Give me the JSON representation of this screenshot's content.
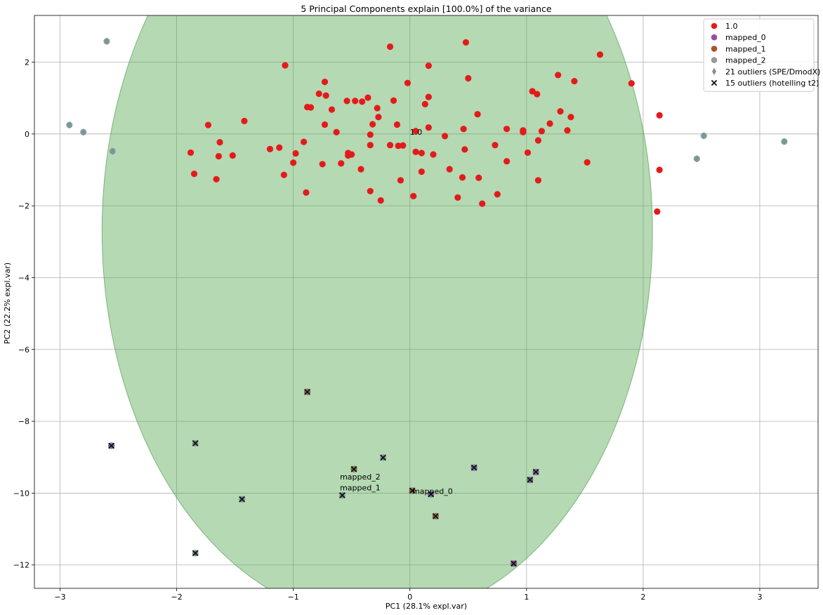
{
  "chart_data": {
    "type": "scatter",
    "title": "5 Principal Components explain [100.0%] of the variance",
    "xlabel": "PC1 (28.1% expl.var)",
    "ylabel": "PC2 (22.2% expl.var)",
    "xlim": [
      -3.22,
      3.5
    ],
    "ylim": [
      -12.65,
      3.3
    ],
    "xticks": [
      -3,
      -2,
      -1,
      0,
      1,
      2,
      3
    ],
    "yticks": [
      2,
      0,
      -2,
      -4,
      -6,
      -8,
      -10,
      -12
    ],
    "grid": true,
    "legend_position": "top-right",
    "ellipse": {
      "cx": -0.28,
      "cy": -2.7,
      "rx": 2.36,
      "ry": 10.85,
      "angle_deg": 0,
      "color": "#5aaa55"
    },
    "colors": {
      "1.0": "#e41a1c",
      "mapped_0": "#984ea3",
      "mapped_1": "#a65628",
      "mapped_2": "#999999",
      "outlier_marker": "#111111"
    },
    "series": [
      {
        "name": "1.0",
        "marker": "circle",
        "color": "#e41a1c",
        "points": [
          [
            -0.17,
            2.43
          ],
          [
            0.48,
            2.55
          ],
          [
            0.16,
            1.9
          ],
          [
            -1.07,
            1.91
          ],
          [
            1.63,
            2.21
          ],
          [
            1.9,
            1.41
          ],
          [
            1.41,
            1.47
          ],
          [
            1.27,
            1.64
          ],
          [
            1.05,
            1.19
          ],
          [
            1.09,
            1.11
          ],
          [
            0.5,
            1.55
          ],
          [
            -0.73,
            1.45
          ],
          [
            -0.78,
            1.12
          ],
          [
            -0.72,
            1.07
          ],
          [
            -0.54,
            0.92
          ],
          [
            -0.47,
            0.92
          ],
          [
            -0.41,
            0.9
          ],
          [
            -0.36,
            1.01
          ],
          [
            -0.14,
            0.93
          ],
          [
            -0.02,
            1.42
          ],
          [
            0.16,
            1.03
          ],
          [
            0.13,
            0.83
          ],
          [
            -0.88,
            0.75
          ],
          [
            -0.85,
            0.74
          ],
          [
            -0.67,
            0.68
          ],
          [
            -0.28,
            0.72
          ],
          [
            -0.27,
            0.47
          ],
          [
            1.29,
            0.63
          ],
          [
            1.38,
            0.47
          ],
          [
            0.58,
            0.55
          ],
          [
            -1.73,
            0.25
          ],
          [
            -1.42,
            0.36
          ],
          [
            -0.73,
            0.26
          ],
          [
            -0.63,
            0.05
          ],
          [
            -0.32,
            0.27
          ],
          [
            -0.11,
            0.26
          ],
          [
            0.05,
            0.08
          ],
          [
            0.16,
            0.18
          ],
          [
            0.3,
            -0.06
          ],
          [
            0.46,
            0.14
          ],
          [
            0.83,
            0.14
          ],
          [
            0.97,
            0.1
          ],
          [
            0.97,
            0.05
          ],
          [
            1.13,
            0.08
          ],
          [
            1.2,
            0.29
          ],
          [
            1.35,
            0.1
          ],
          [
            2.14,
            0.52
          ],
          [
            -1.88,
            -0.52
          ],
          [
            -1.63,
            -0.23
          ],
          [
            -1.64,
            -0.62
          ],
          [
            -1.52,
            -0.6
          ],
          [
            -1.2,
            -0.42
          ],
          [
            -1.12,
            -0.38
          ],
          [
            -0.98,
            -0.54
          ],
          [
            -0.91,
            -0.22
          ],
          [
            -0.53,
            -0.53
          ],
          [
            -0.53,
            -0.6
          ],
          [
            -0.5,
            -0.57
          ],
          [
            -0.34,
            -0.02
          ],
          [
            -0.34,
            -0.31
          ],
          [
            -0.17,
            -0.31
          ],
          [
            -0.1,
            -0.33
          ],
          [
            -0.06,
            -0.32
          ],
          [
            0.05,
            -0.5
          ],
          [
            0.1,
            -0.53
          ],
          [
            0.2,
            -0.57
          ],
          [
            0.47,
            -0.43
          ],
          [
            0.73,
            -0.31
          ],
          [
            1.01,
            -0.52
          ],
          [
            1.1,
            -0.18
          ],
          [
            -1.85,
            -1.11
          ],
          [
            -1.66,
            -1.26
          ],
          [
            -1.08,
            -1.14
          ],
          [
            -1.0,
            -0.8
          ],
          [
            -0.75,
            -0.84
          ],
          [
            -0.59,
            -0.82
          ],
          [
            -0.42,
            -0.98
          ],
          [
            -0.08,
            -1.29
          ],
          [
            0.1,
            -1.05
          ],
          [
            0.34,
            -0.98
          ],
          [
            0.45,
            -1.21
          ],
          [
            0.59,
            -1.22
          ],
          [
            0.83,
            -0.76
          ],
          [
            1.1,
            -1.29
          ],
          [
            1.52,
            -0.79
          ],
          [
            2.14,
            -1.0
          ],
          [
            -0.89,
            -1.63
          ],
          [
            -0.34,
            -1.59
          ],
          [
            -0.25,
            -1.85
          ],
          [
            0.03,
            -1.73
          ],
          [
            0.41,
            -1.77
          ],
          [
            0.62,
            -1.94
          ],
          [
            0.75,
            -1.68
          ],
          [
            2.12,
            -2.16
          ]
        ]
      },
      {
        "name": "mapped_0",
        "marker": "circle",
        "color": "#984ea3",
        "points": [
          [
            -2.56,
            -8.68
          ],
          [
            0.18,
            -10.03
          ],
          [
            0.55,
            -9.29
          ],
          [
            1.03,
            -9.63
          ],
          [
            1.08,
            -9.41
          ],
          [
            0.89,
            -11.96
          ]
        ]
      },
      {
        "name": "mapped_1",
        "marker": "circle",
        "color": "#a65628",
        "points": [
          [
            -0.88,
            -7.18
          ],
          [
            -0.48,
            -9.33
          ],
          [
            0.02,
            -9.93
          ],
          [
            0.22,
            -10.64
          ]
        ]
      },
      {
        "name": "mapped_2",
        "marker": "circle",
        "color": "#999999",
        "points": [
          [
            -2.6,
            2.58
          ],
          [
            -2.92,
            0.25
          ],
          [
            -2.8,
            0.05
          ],
          [
            -2.55,
            -0.48
          ],
          [
            2.52,
            -0.05
          ],
          [
            2.46,
            -0.69
          ],
          [
            3.21,
            -0.21
          ],
          [
            -1.84,
            -8.61
          ],
          [
            -1.84,
            -11.67
          ],
          [
            -1.44,
            -10.17
          ],
          [
            -0.58,
            -10.06
          ],
          [
            -0.23,
            -9.01
          ]
        ]
      },
      {
        "name": "21 outliers (SPE/DmodX)",
        "marker": "diamond",
        "color": "#5f9ea0",
        "points": [
          [
            -2.6,
            2.58
          ],
          [
            -2.92,
            0.25
          ],
          [
            -2.8,
            0.05
          ],
          [
            -2.55,
            -0.48
          ],
          [
            2.52,
            -0.05
          ],
          [
            2.46,
            -0.69
          ],
          [
            3.21,
            -0.21
          ],
          [
            -0.88,
            -7.18
          ],
          [
            -2.56,
            -8.68
          ],
          [
            -1.84,
            -8.61
          ],
          [
            -0.23,
            -9.01
          ],
          [
            -0.48,
            -9.33
          ],
          [
            0.55,
            -9.29
          ],
          [
            1.03,
            -9.63
          ],
          [
            1.08,
            -9.41
          ],
          [
            0.02,
            -9.93
          ],
          [
            0.18,
            -10.03
          ],
          [
            -0.58,
            -10.06
          ],
          [
            -1.44,
            -10.17
          ],
          [
            0.22,
            -10.64
          ],
          [
            -1.84,
            -11.67
          ]
        ]
      },
      {
        "name": "15 outliers (hotelling t2)",
        "marker": "x",
        "color": "#111111",
        "points": [
          [
            -0.88,
            -7.18
          ],
          [
            -2.56,
            -8.68
          ],
          [
            -1.84,
            -8.61
          ],
          [
            -0.23,
            -9.01
          ],
          [
            -0.48,
            -9.33
          ],
          [
            0.55,
            -9.29
          ],
          [
            1.03,
            -9.63
          ],
          [
            1.08,
            -9.41
          ],
          [
            0.02,
            -9.93
          ],
          [
            0.18,
            -10.03
          ],
          [
            -0.58,
            -10.06
          ],
          [
            -1.44,
            -10.17
          ],
          [
            0.22,
            -10.64
          ],
          [
            -1.84,
            -11.67
          ],
          [
            0.89,
            -11.96
          ]
        ]
      }
    ],
    "annotations": [
      {
        "text": "1.0",
        "x": 0.0,
        "y": 0.0
      },
      {
        "text": "mapped_2",
        "x": -0.6,
        "y": -9.6
      },
      {
        "text": "mapped_1",
        "x": -0.6,
        "y": -9.9
      },
      {
        "text": "mapped_0",
        "x": 0.02,
        "y": -10.0
      }
    ]
  }
}
